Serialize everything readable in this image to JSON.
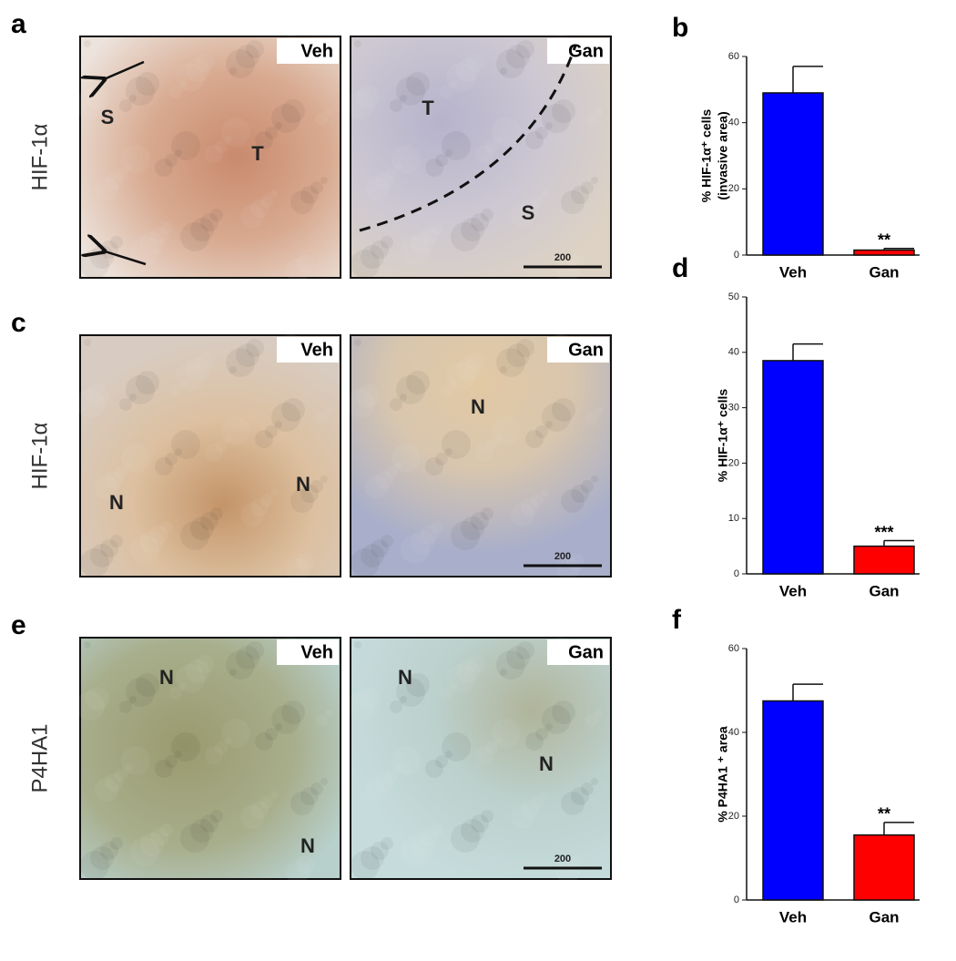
{
  "panels": [
    {
      "label": "a",
      "stain": "HIF-1α",
      "images": [
        {
          "tag": "Veh",
          "marks": [
            "S",
            "T"
          ]
        },
        {
          "tag": "Gan",
          "marks": [
            "T",
            "S"
          ],
          "scale": "200"
        }
      ]
    },
    {
      "label": "c",
      "stain": "HIF-1α",
      "images": [
        {
          "tag": "Veh",
          "marks": [
            "N",
            "N"
          ]
        },
        {
          "tag": "Gan",
          "marks": [
            "N"
          ],
          "scale": "200"
        }
      ]
    },
    {
      "label": "e",
      "stain": "P4HA1",
      "images": [
        {
          "tag": "Veh",
          "marks": [
            "N",
            "N"
          ]
        },
        {
          "tag": "Gan",
          "marks": [
            "N",
            "N"
          ],
          "scale": "200"
        }
      ]
    }
  ],
  "chart_data": [
    {
      "type": "bar",
      "label": "b",
      "ylabel": [
        "% HIF-1α⁺ cells",
        "(invasive area)"
      ],
      "categories": [
        "Veh",
        "Gan"
      ],
      "values": [
        49,
        1.5
      ],
      "errors": [
        8,
        0.5
      ],
      "colors": [
        "#0000ff",
        "#ff0000"
      ],
      "significance": [
        null,
        "**"
      ],
      "ylim": [
        0,
        60
      ],
      "yticks": [
        0,
        20,
        40,
        60
      ]
    },
    {
      "type": "bar",
      "label": "d",
      "ylabel": [
        "% HIF-1α⁺ cells"
      ],
      "categories": [
        "Veh",
        "Gan"
      ],
      "values": [
        38.5,
        5
      ],
      "errors": [
        3,
        1
      ],
      "colors": [
        "#0000ff",
        "#ff0000"
      ],
      "significance": [
        null,
        "***"
      ],
      "ylim": [
        0,
        50
      ],
      "yticks": [
        0,
        10,
        20,
        30,
        40,
        50
      ]
    },
    {
      "type": "bar",
      "label": "f",
      "ylabel": [
        "% P4HA1 ⁺ area"
      ],
      "categories": [
        "Veh",
        "Gan"
      ],
      "values": [
        47.5,
        15.5
      ],
      "errors": [
        4,
        3
      ],
      "colors": [
        "#0000ff",
        "#ff0000"
      ],
      "significance": [
        null,
        "**"
      ],
      "ylim": [
        0,
        60
      ],
      "yticks": [
        0,
        20,
        40,
        60
      ]
    }
  ]
}
